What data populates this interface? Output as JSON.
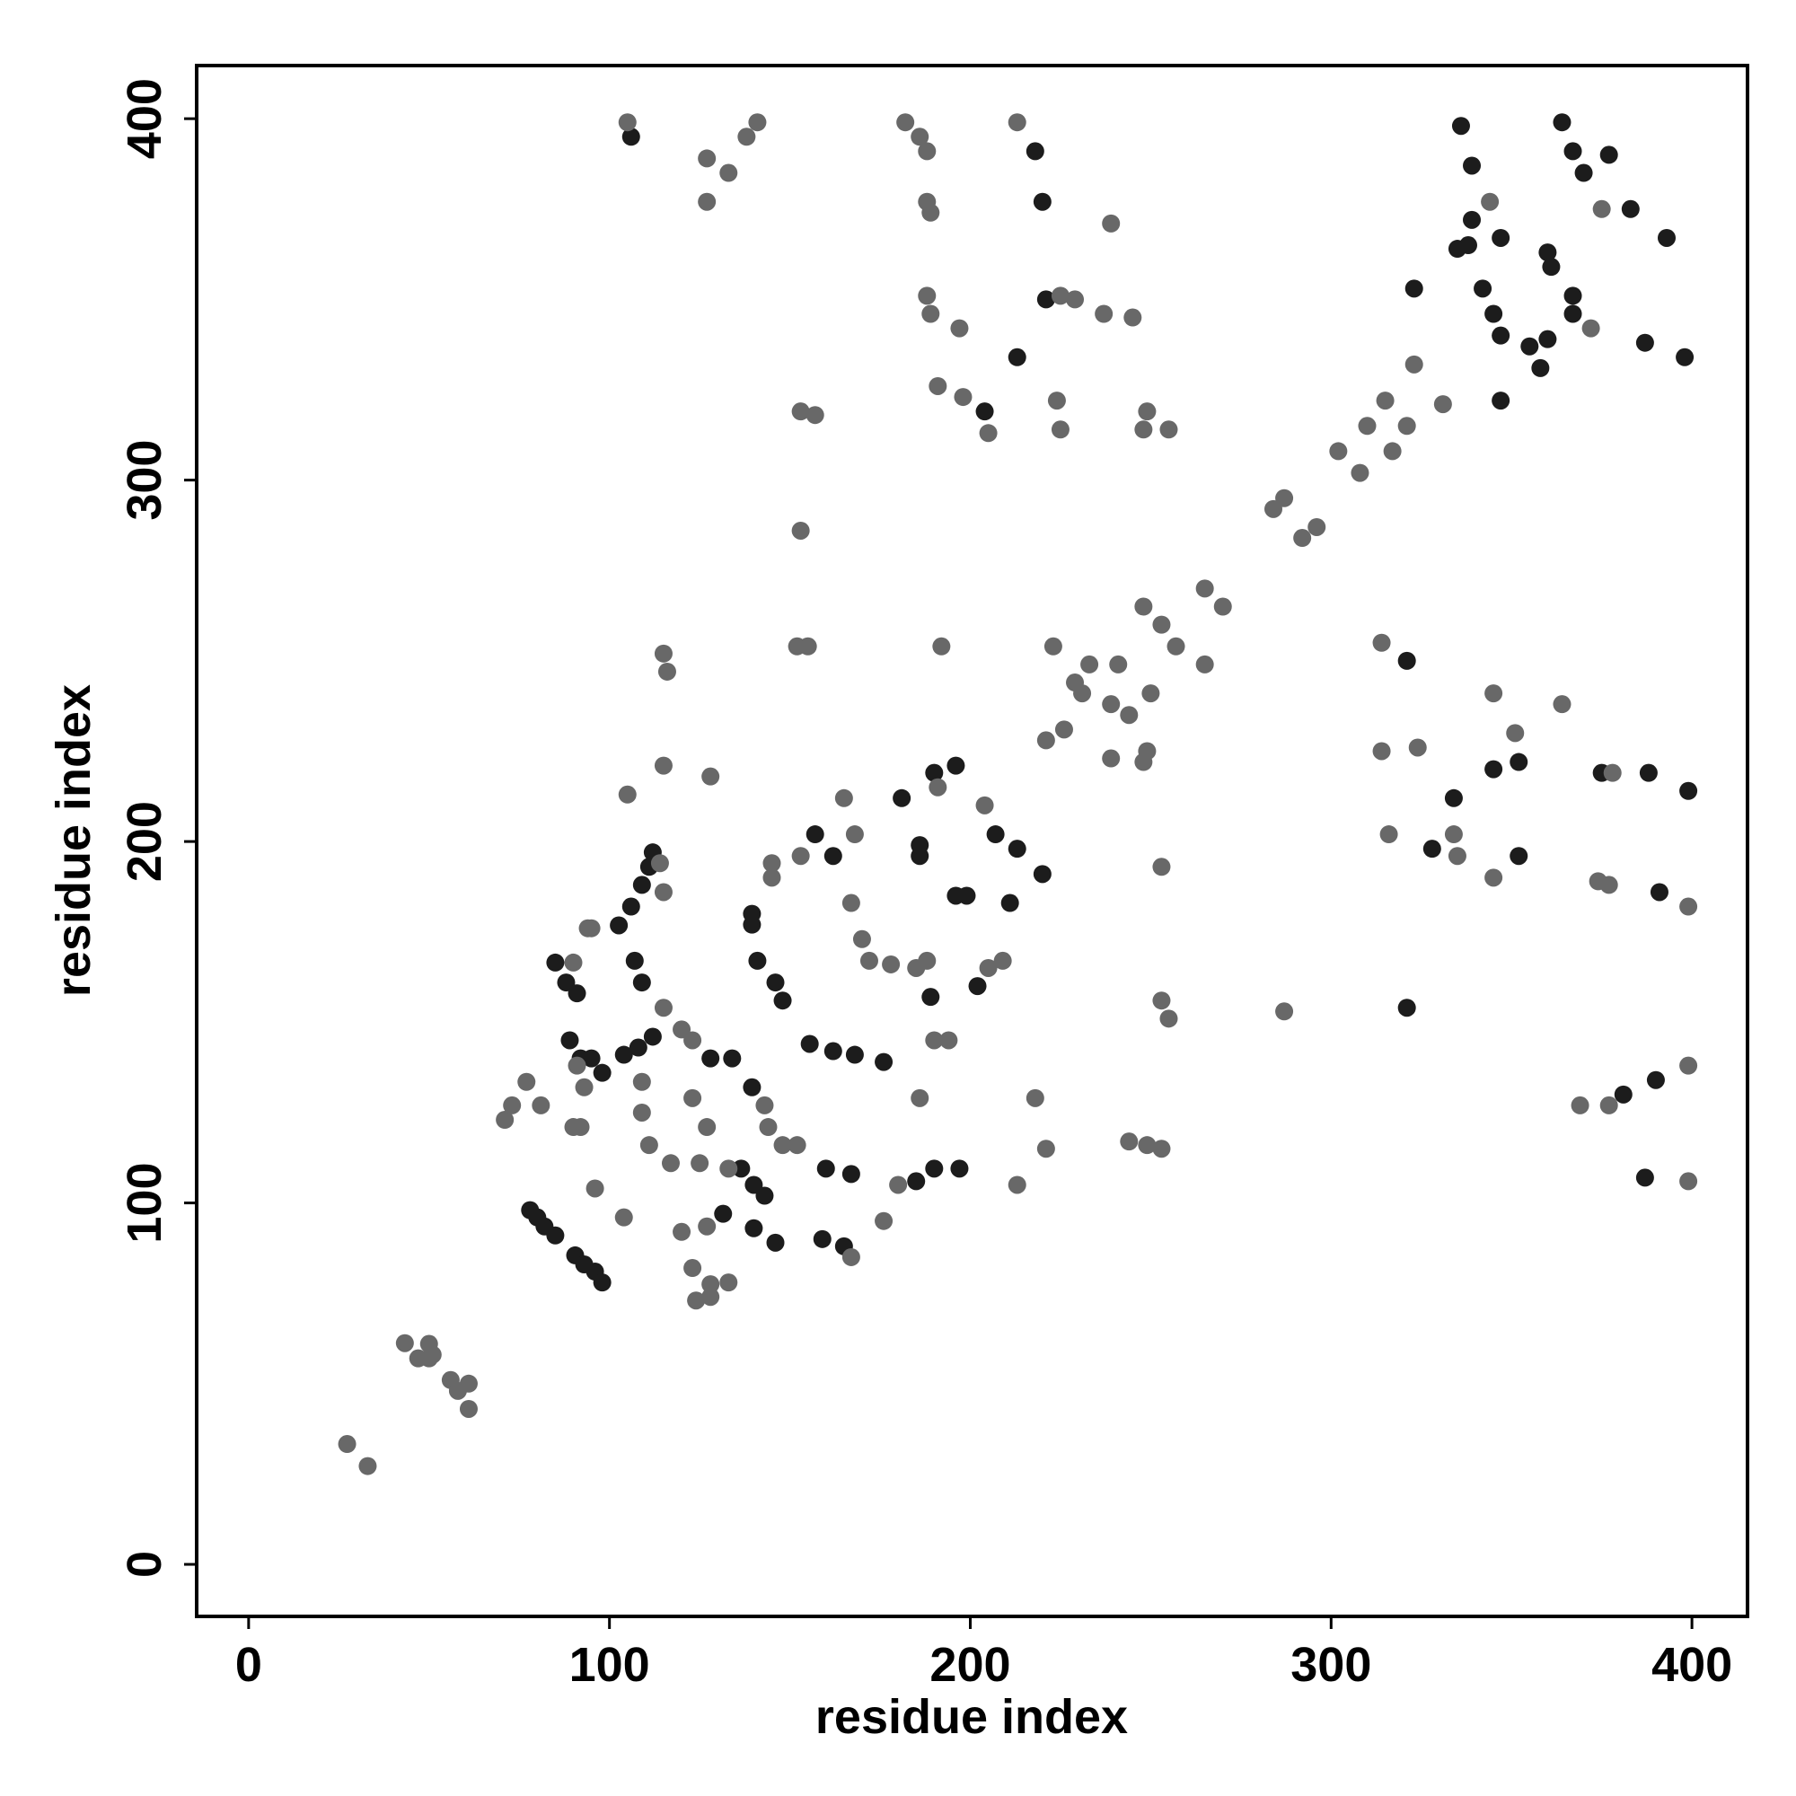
{
  "chart_data": {
    "type": "scatter",
    "xlabel": "residue index",
    "ylabel": "residue index",
    "xlim": [
      -14.4,
      415.4
    ],
    "ylim": [
      -14.4,
      414.7
    ],
    "xticks": [
      0,
      100,
      200,
      300,
      400
    ],
    "yticks": [
      0,
      100,
      200,
      300,
      400
    ],
    "grid": false,
    "series": [
      {
        "color": "#1c1c1c",
        "x": [
          78,
          80,
          82,
          85,
          90.5,
          93,
          96,
          98,
          85,
          88,
          91,
          89,
          92,
          95,
          98,
          102.6,
          106,
          109,
          111,
          112,
          107,
          109,
          104,
          108,
          112,
          128,
          134,
          139.5,
          141,
          146,
          148,
          136.5,
          140,
          143,
          131.5,
          140,
          146,
          155.5,
          162,
          168,
          160,
          167,
          159,
          165,
          157,
          162,
          176,
          185,
          190,
          197,
          186,
          186,
          181,
          190,
          196,
          199,
          196,
          202,
          189,
          207,
          213,
          220,
          211,
          139.5,
          139.5,
          213,
          221,
          204,
          218,
          220,
          106,
          323,
          335,
          338,
          339,
          336,
          339,
          342,
          345,
          347,
          355,
          347,
          358,
          360,
          367,
          347,
          360,
          361,
          367,
          364,
          367,
          370,
          377,
          383,
          393,
          387,
          398,
          334,
          345,
          352,
          328,
          321,
          352,
          321,
          375,
          388,
          399,
          391,
          381,
          390,
          387
        ],
        "y": [
          98,
          96,
          93.5,
          91,
          85.5,
          83,
          81,
          78,
          166.5,
          161,
          158,
          145,
          140,
          140,
          136,
          176.8,
          182,
          188,
          193,
          197,
          167,
          161,
          141,
          143,
          146,
          140,
          140,
          132,
          167,
          161,
          156,
          109.5,
          105,
          102,
          97,
          93,
          89,
          144,
          142,
          141,
          109.5,
          108,
          90,
          88,
          202,
          196,
          139,
          106,
          109.5,
          109.5,
          196,
          199,
          212,
          219,
          221,
          185,
          185,
          160,
          157,
          202,
          198,
          191,
          183,
          180,
          177,
          334,
          350,
          319,
          391,
          377,
          395,
          353,
          364,
          365,
          372,
          398,
          387,
          353,
          346,
          340,
          337,
          322,
          331,
          339,
          346,
          367,
          363,
          359,
          351,
          399,
          391,
          385,
          390,
          375,
          367,
          338,
          334,
          212,
          220,
          222,
          198,
          250,
          196,
          154,
          219,
          219,
          214,
          186,
          130,
          134,
          107
        ]
      },
      {
        "color": "#686868",
        "x": [
          27.3,
          33,
          43.3,
          47,
          50,
          50,
          51,
          56,
          58,
          61,
          61,
          96,
          104,
          71,
          73,
          77,
          81,
          90,
          94,
          95,
          91,
          93,
          90,
          92,
          115,
          114,
          115,
          116,
          115,
          105,
          128,
          109,
          111,
          109,
          115,
          120,
          123,
          123,
          127,
          117,
          125,
          133,
          120,
          127,
          123,
          128,
          133,
          124,
          128,
          143,
          145,
          145,
          144,
          148,
          152,
          167,
          153,
          152,
          155,
          153,
          157,
          153,
          165,
          168,
          167,
          170,
          172,
          178,
          185,
          176,
          180,
          186,
          190,
          194,
          191,
          204,
          188,
          205,
          209,
          213,
          221,
          218,
          192,
          244,
          249,
          253,
          253,
          253,
          255,
          223,
          229,
          221,
          226,
          231,
          239,
          233,
          239,
          241,
          244,
          249,
          250,
          248,
          253,
          257,
          265,
          265,
          270,
          284,
          287,
          292,
          296,
          302,
          308,
          310,
          315,
          323,
          317,
          321,
          331,
          105,
          127,
          133,
          138,
          141,
          127,
          182,
          186,
          188,
          188,
          189,
          189,
          213,
          239,
          225,
          229,
          237,
          245,
          224,
          225,
          191,
          198,
          205,
          197,
          188,
          249,
          255,
          248,
          344,
          372,
          375,
          314,
          314,
          324,
          316,
          334,
          335,
          345,
          351,
          287,
          345,
          364,
          378,
          374,
          377,
          399,
          369,
          377,
          399,
          399,
          248
        ],
        "y": [
          33.3,
          27.2,
          61.2,
          57,
          57,
          61,
          58,
          51,
          48,
          50,
          43,
          104,
          96,
          123,
          127,
          133.5,
          127,
          166.5,
          176,
          176,
          138,
          132,
          121,
          121,
          186,
          194,
          252,
          247,
          221,
          213,
          218,
          125,
          116,
          133.5,
          154,
          148,
          145,
          129,
          121,
          111,
          111,
          109.5,
          92,
          93.5,
          82,
          77.5,
          78,
          73,
          74,
          127,
          194,
          190,
          121,
          116,
          116,
          85,
          196,
          254,
          254,
          319,
          318,
          286,
          212,
          202,
          183,
          173,
          167,
          166,
          165,
          95,
          105,
          129,
          145,
          145,
          215,
          210,
          167,
          165,
          167,
          105,
          115,
          129,
          254,
          117,
          116,
          115,
          193,
          156,
          151,
          254,
          244,
          228,
          231,
          241,
          238,
          249,
          223,
          249,
          235,
          225,
          241,
          265,
          260,
          254,
          249,
          270,
          265,
          292,
          295,
          284,
          287,
          308,
          302,
          315,
          322,
          332,
          308,
          315,
          321,
          399,
          389,
          385,
          395,
          399,
          377,
          399,
          395,
          391,
          377,
          374,
          346,
          399,
          371,
          351,
          350,
          346,
          345,
          322,
          314,
          326,
          323,
          313,
          342,
          351,
          319,
          314,
          314,
          377,
          342,
          375,
          255,
          225,
          226,
          202,
          202,
          196,
          241,
          230,
          153,
          190,
          238,
          219,
          189,
          188,
          182,
          127,
          127,
          138,
          106,
          222
        ]
      }
    ]
  }
}
